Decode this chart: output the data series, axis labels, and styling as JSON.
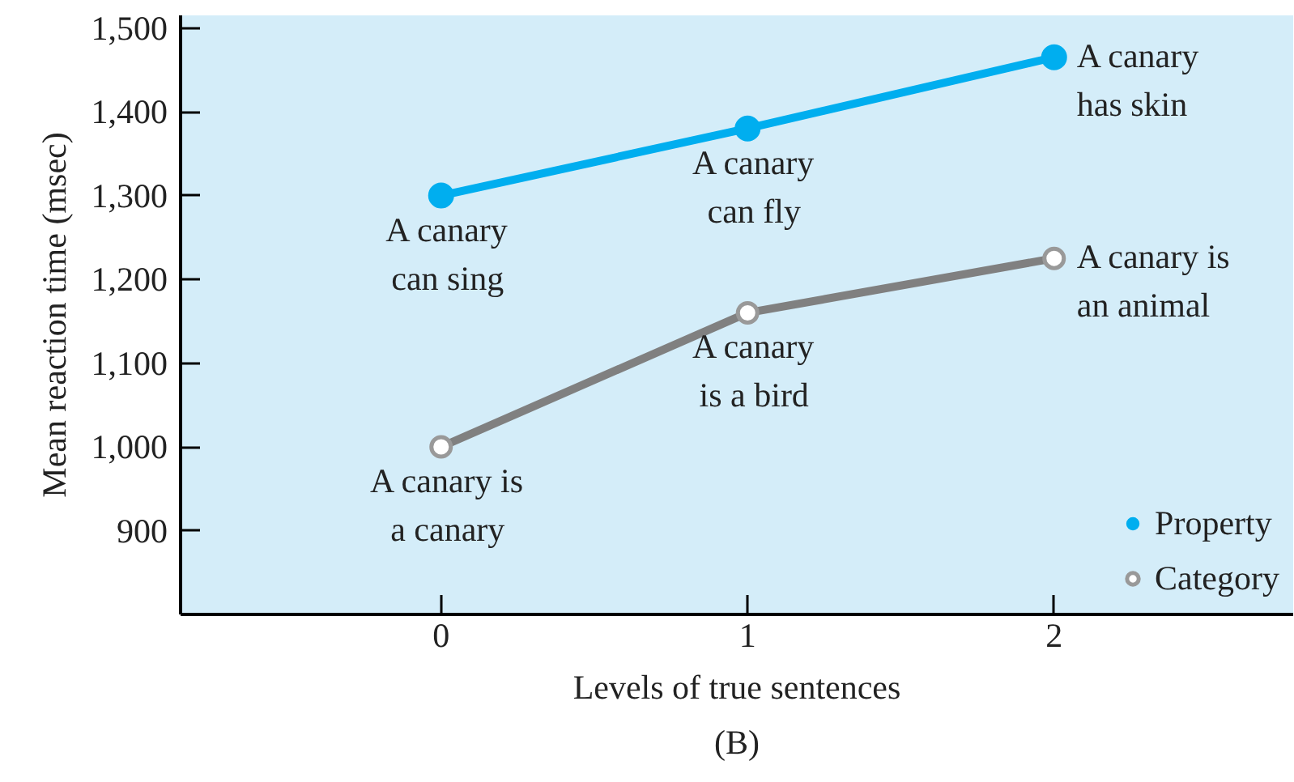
{
  "chart_data": {
    "type": "line",
    "xlabel": "Levels of true sentences",
    "ylabel": "Mean reaction time (msec)",
    "x": [
      0,
      1,
      2
    ],
    "xlim": [
      -0.85,
      2.78
    ],
    "xticks": [
      0,
      1,
      2
    ],
    "ylim": [
      800,
      1515
    ],
    "yticks": [
      900,
      {
        "value": 1000,
        "label": "1,000"
      },
      {
        "value": 1100,
        "label": "1,100"
      },
      {
        "value": 1200,
        "label": "1,200"
      },
      {
        "value": 1300,
        "label": "1,300"
      },
      {
        "value": 1400,
        "label": "1,400"
      },
      {
        "value": 1500,
        "label": "1,500"
      }
    ],
    "series": [
      {
        "name": "Property",
        "color": "#00aeef",
        "values": [
          1300,
          1380,
          1465
        ]
      },
      {
        "name": "Category",
        "color": "#808080",
        "values": [
          1000,
          1160,
          1225
        ]
      }
    ],
    "marker": "circle",
    "legend": "bottom right",
    "annotations": [
      {
        "text": "A canary\ncan sing",
        "x": 0,
        "y": 1300
      },
      {
        "text": "A canary\ncan fly",
        "x": 1,
        "y": 1380
      },
      {
        "text": "A canary\nhas skin",
        "x": 2,
        "y": 1465
      },
      {
        "text": "A canary is\na canary",
        "x": 0,
        "y": 1000
      },
      {
        "text": "A canary\nis a bird",
        "x": 1,
        "y": 1160
      },
      {
        "text": "A canary is\nan animal",
        "x": 2,
        "y": 1225
      },
      "(B)"
    ]
  }
}
